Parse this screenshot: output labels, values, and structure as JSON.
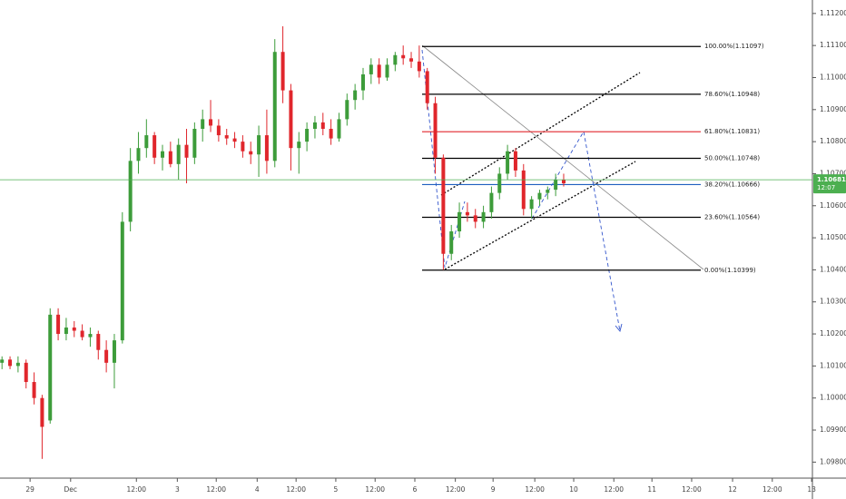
{
  "chart_data": {
    "type": "candlestick",
    "up_color": "#3d9c3a",
    "down_color": "#e0262c",
    "x": [
      -0.7,
      -0.5,
      -0.3,
      -0.1,
      0.1,
      0.3,
      0.5,
      0.7,
      0.9,
      1.1,
      1.3,
      1.5,
      1.7,
      1.9,
      2.1,
      2.3,
      2.5,
      2.7,
      2.9,
      3.1,
      3.3,
      3.5,
      3.7,
      3.9,
      4.1,
      4.3,
      4.5,
      4.7,
      4.9,
      5.1,
      5.3,
      5.5,
      5.7,
      5.9,
      6.1,
      6.3,
      6.5,
      6.7,
      6.9,
      7.1,
      7.3,
      7.5,
      7.7,
      7.9,
      8.1,
      8.3,
      8.5,
      8.7,
      8.9,
      9.1,
      9.3,
      9.5,
      9.7,
      9.9,
      10.1,
      10.3,
      10.5,
      10.7,
      10.9,
      11.1,
      11.3,
      11.5,
      11.7,
      11.9,
      12.1,
      12.3,
      12.5,
      12.7,
      12.9,
      13.1,
      13.3
    ],
    "open": [
      1.1011,
      1.1012,
      1.101,
      1.1011,
      1.1005,
      1.1,
      1.0993,
      1.1026,
      1.102,
      1.1022,
      1.1021,
      1.1019,
      1.102,
      1.1015,
      1.1011,
      1.1018,
      1.1055,
      1.1074,
      1.1078,
      1.1082,
      1.1075,
      1.1077,
      1.1073,
      1.1079,
      1.1075,
      1.1084,
      1.1087,
      1.1085,
      1.1082,
      1.1081,
      1.108,
      1.1077,
      1.1076,
      1.1082,
      1.1074,
      1.1108,
      1.1096,
      1.1078,
      1.108,
      1.1084,
      1.1086,
      1.1084,
      1.1081,
      1.1087,
      1.1093,
      1.1096,
      1.1101,
      1.1104,
      1.11,
      1.1104,
      1.1107,
      1.1106,
      1.1105,
      1.1102,
      1.1092,
      1.1075,
      1.1045,
      1.1052,
      1.1058,
      1.1057,
      1.1055,
      1.1058,
      1.1064,
      1.107,
      1.1077,
      1.1071,
      1.1059,
      1.1062,
      1.1064,
      1.1065,
      1.1068
    ],
    "high": [
      1.1013,
      1.1013,
      1.1013,
      1.1012,
      1.1008,
      1.1001,
      1.1028,
      1.1028,
      1.1025,
      1.1024,
      1.1023,
      1.1022,
      1.1021,
      1.1018,
      1.102,
      1.1058,
      1.1078,
      1.1083,
      1.1087,
      1.1083,
      1.1079,
      1.108,
      1.1081,
      1.1084,
      1.1086,
      1.109,
      1.1093,
      1.1087,
      1.1084,
      1.1083,
      1.1082,
      1.108,
      1.1085,
      1.109,
      1.1112,
      1.1116,
      1.1098,
      1.1083,
      1.1086,
      1.1088,
      1.1089,
      1.1087,
      1.1089,
      1.1095,
      1.1098,
      1.1103,
      1.1106,
      1.1106,
      1.1106,
      1.1108,
      1.111,
      1.1108,
      1.111,
      1.1103,
      1.1094,
      1.1076,
      1.1054,
      1.1061,
      1.1061,
      1.1059,
      1.106,
      1.1066,
      1.1072,
      1.1079,
      1.1078,
      1.1073,
      1.1063,
      1.1065,
      1.1066,
      1.107,
      1.107
    ],
    "low": [
      1.1009,
      1.1009,
      1.1008,
      1.1003,
      1.0998,
      1.0981,
      1.0992,
      1.1018,
      1.1018,
      1.1019,
      1.1018,
      1.1016,
      1.1012,
      1.1008,
      1.1003,
      1.1017,
      1.1052,
      1.107,
      1.1075,
      1.1073,
      1.1071,
      1.1072,
      1.1068,
      1.1067,
      1.1073,
      1.108,
      1.1083,
      1.108,
      1.1079,
      1.1078,
      1.1075,
      1.1073,
      1.1069,
      1.107,
      1.1072,
      1.1092,
      1.1071,
      1.107,
      1.1077,
      1.1081,
      1.1082,
      1.1079,
      1.108,
      1.1085,
      1.109,
      1.1093,
      1.1098,
      1.1098,
      1.1099,
      1.1102,
      1.1104,
      1.1103,
      1.11,
      1.109,
      1.107,
      1.104,
      1.1043,
      1.105,
      1.1055,
      1.1053,
      1.1053,
      1.1056,
      1.1062,
      1.1068,
      1.1069,
      1.1057,
      1.1056,
      1.106,
      1.1062,
      1.1063,
      1.1066
    ],
    "close": [
      1.1012,
      1.101,
      1.1011,
      1.1005,
      1.1,
      1.0991,
      1.1026,
      1.102,
      1.1022,
      1.1021,
      1.1019,
      1.102,
      1.1015,
      1.1011,
      1.1018,
      1.1055,
      1.1074,
      1.1078,
      1.1082,
      1.1075,
      1.1077,
      1.1073,
      1.1079,
      1.1075,
      1.1084,
      1.1087,
      1.1085,
      1.1082,
      1.1081,
      1.108,
      1.1077,
      1.1076,
      1.1082,
      1.1074,
      1.1108,
      1.1096,
      1.1078,
      1.108,
      1.1084,
      1.1086,
      1.1084,
      1.1081,
      1.1087,
      1.1093,
      1.1096,
      1.1101,
      1.1104,
      1.11,
      1.1104,
      1.1107,
      1.1106,
      1.1105,
      1.1102,
      1.1092,
      1.1075,
      1.1045,
      1.1052,
      1.1058,
      1.1057,
      1.1055,
      1.1058,
      1.1064,
      1.107,
      1.1077,
      1.1071,
      1.1059,
      1.1062,
      1.1064,
      1.1065,
      1.1068,
      1.1067
    ],
    "xlim": [
      -0.75,
      19.5
    ],
    "ylim": [
      1.0975,
      1.11242
    ],
    "xticks": [
      {
        "value": 0,
        "label": "29"
      },
      {
        "value": 1.01,
        "label": "Dec"
      },
      {
        "value": 2.65,
        "label": "12:00"
      },
      {
        "value": 3.67,
        "label": "3"
      },
      {
        "value": 4.64,
        "label": "12:00"
      },
      {
        "value": 5.66,
        "label": "4"
      },
      {
        "value": 6.63,
        "label": "12:00"
      },
      {
        "value": 7.62,
        "label": "5"
      },
      {
        "value": 8.6,
        "label": "12:00"
      },
      {
        "value": 9.59,
        "label": "6"
      },
      {
        "value": 10.6,
        "label": "12:00"
      },
      {
        "value": 11.54,
        "label": "9"
      },
      {
        "value": 12.58,
        "label": "12:00"
      },
      {
        "value": 13.55,
        "label": "10"
      },
      {
        "value": 14.55,
        "label": "12:00"
      },
      {
        "value": 15.5,
        "label": "11"
      },
      {
        "value": 16.49,
        "label": "12:00"
      },
      {
        "value": 17.51,
        "label": "12"
      },
      {
        "value": 18.5,
        "label": "12:00"
      },
      {
        "value": 19.48,
        "label": "13"
      }
    ],
    "yticks": [
      {
        "value": 1.098,
        "label": "1.09800"
      },
      {
        "value": 1.099,
        "label": "1.09900"
      },
      {
        "value": 1.1,
        "label": "1.10000"
      },
      {
        "value": 1.101,
        "label": "1.10100"
      },
      {
        "value": 1.102,
        "label": "1.10200"
      },
      {
        "value": 1.103,
        "label": "1.10300"
      },
      {
        "value": 1.104,
        "label": "1.10400"
      },
      {
        "value": 1.105,
        "label": "1.10500"
      },
      {
        "value": 1.106,
        "label": "1.10600"
      },
      {
        "value": 1.107,
        "label": "1.10700"
      },
      {
        "value": 1.108,
        "label": "1.10800"
      },
      {
        "value": 1.109,
        "label": "1.10900"
      },
      {
        "value": 1.11,
        "label": "1.11000"
      },
      {
        "value": 1.111,
        "label": "1.11100"
      },
      {
        "value": 1.112,
        "label": "1.11200"
      }
    ],
    "fib_levels": [
      {
        "label": "100.00%(1.11097)",
        "price": 1.11097,
        "color": "#000000"
      },
      {
        "label": "78.60%(1.10948)",
        "price": 1.10948,
        "color": "#000000"
      },
      {
        "label": "61.80%(1.10831)",
        "price": 1.10831,
        "color": "#e0262c"
      },
      {
        "label": "50.00%(1.10748)",
        "price": 1.10748,
        "color": "#000000"
      },
      {
        "label": "38.20%(1.10666)",
        "price": 1.10666,
        "color": "#1e5fbf"
      },
      {
        "label": "23.60%(1.10564)",
        "price": 1.10564,
        "color": "#000000"
      },
      {
        "label": "0.00%(1.10399)",
        "price": 1.10399,
        "color": "#000000"
      }
    ],
    "last_price": 1.10681,
    "last_time": "12:07",
    "last_color": "#4caf50"
  }
}
